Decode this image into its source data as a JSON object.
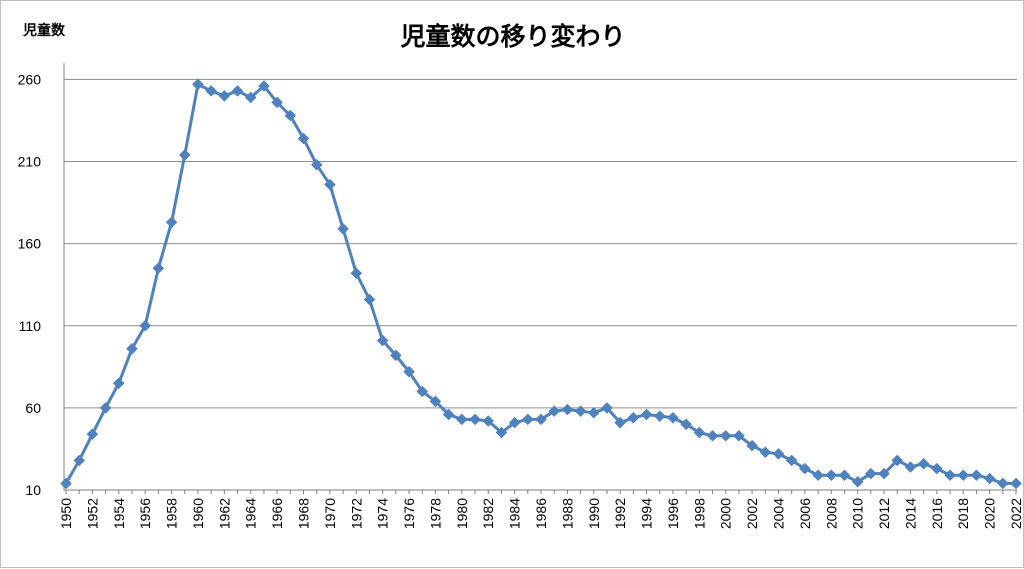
{
  "chart_data": {
    "type": "line",
    "title": "児童数の移り変わり",
    "ylabel": "児童数",
    "xlabel": "",
    "ylim": [
      10,
      270
    ],
    "yticks": [
      10,
      60,
      110,
      160,
      210,
      260
    ],
    "grid": true,
    "legend": "none",
    "series_color": "#4f81bd",
    "x": [
      1950,
      1951,
      1952,
      1953,
      1954,
      1955,
      1956,
      1957,
      1958,
      1959,
      1960,
      1961,
      1962,
      1963,
      1964,
      1965,
      1966,
      1967,
      1968,
      1969,
      1970,
      1971,
      1972,
      1973,
      1974,
      1975,
      1976,
      1977,
      1978,
      1979,
      1980,
      1981,
      1982,
      1983,
      1984,
      1985,
      1986,
      1987,
      1988,
      1989,
      1990,
      1991,
      1992,
      1993,
      1994,
      1995,
      1996,
      1997,
      1998,
      1999,
      2000,
      2001,
      2002,
      2003,
      2004,
      2005,
      2006,
      2007,
      2008,
      2009,
      2010,
      2011,
      2012,
      2013,
      2014,
      2015,
      2016,
      2017,
      2018,
      2019,
      2020,
      2021,
      2022
    ],
    "xticks": [
      1950,
      1952,
      1954,
      1956,
      1958,
      1960,
      1962,
      1964,
      1966,
      1968,
      1970,
      1972,
      1974,
      1976,
      1978,
      1980,
      1982,
      1984,
      1986,
      1988,
      1990,
      1992,
      1994,
      1996,
      1998,
      2000,
      2002,
      2004,
      2006,
      2008,
      2010,
      2012,
      2014,
      2016,
      2018,
      2020,
      2022
    ],
    "series": [
      {
        "values": [
          14,
          28,
          44,
          60,
          75,
          96,
          110,
          145,
          173,
          214,
          257,
          253,
          250,
          253,
          249,
          256,
          246,
          238,
          224,
          208,
          196,
          169,
          142,
          126,
          101,
          92,
          82,
          70,
          64,
          56,
          53,
          53,
          52,
          45,
          51,
          53,
          53,
          58,
          59,
          58,
          57,
          60,
          51,
          54,
          56,
          55,
          54,
          50,
          45,
          43,
          43,
          43,
          37,
          33,
          32,
          28,
          23,
          19,
          19,
          19,
          15,
          20,
          20,
          28,
          24,
          26,
          23,
          19,
          19,
          19,
          17,
          14,
          14
        ]
      }
    ]
  }
}
